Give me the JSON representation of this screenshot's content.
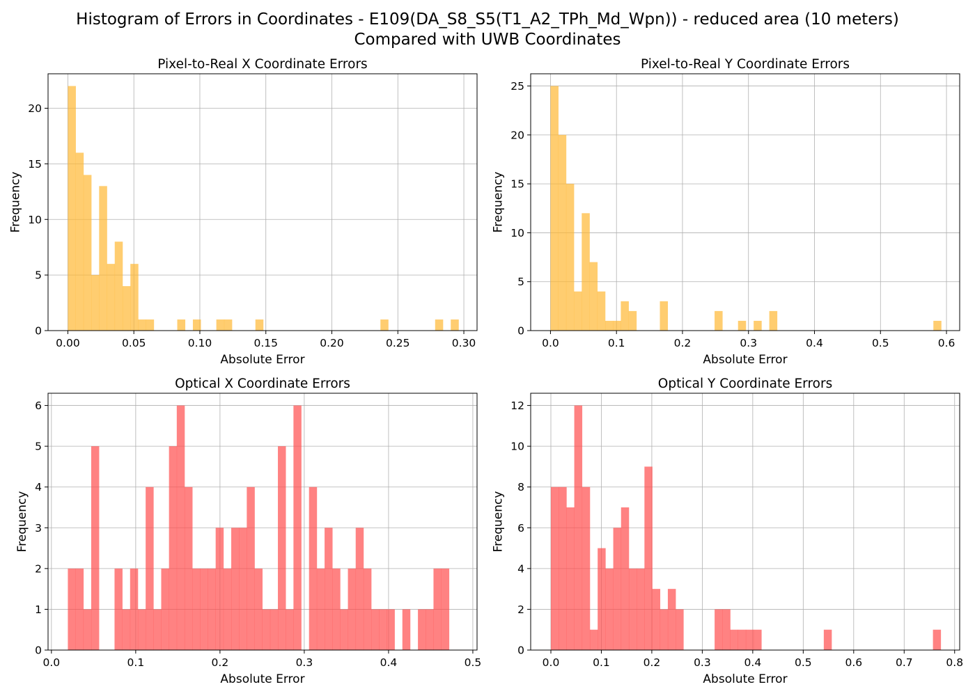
{
  "figure": {
    "title_line1": "Histogram of Errors in Coordinates - E109(DA_S8_S5(T1_A2_TPh_Md_Wpn)) - reduced area (10 meters)",
    "title_line2": "Compared with UWB Coordinates"
  },
  "chart_data": [
    {
      "type": "bar",
      "title": "Pixel-to-Real X Coordinate Errors",
      "xlabel": "Absolute Error",
      "ylabel": "Frequency",
      "color": "#ffb833",
      "grid": true,
      "xlim": [
        -0.015,
        0.31
      ],
      "ylim": [
        0,
        23.1
      ],
      "xticks": [
        0.0,
        0.05,
        0.1,
        0.15,
        0.2,
        0.25,
        0.3
      ],
      "xtick_labels": [
        "0.00",
        "0.05",
        "0.10",
        "0.15",
        "0.20",
        "0.25",
        "0.30"
      ],
      "yticks": [
        0,
        5,
        10,
        15,
        20
      ],
      "ytick_labels": [
        "0",
        "5",
        "10",
        "15",
        "20"
      ],
      "bin_start": 0.0,
      "bin_width": 0.00592,
      "values": [
        22,
        16,
        14,
        5,
        13,
        6,
        8,
        4,
        6,
        1,
        1,
        0,
        0,
        0,
        1,
        0,
        1,
        0,
        0,
        1,
        1,
        0,
        0,
        0,
        1,
        0,
        0,
        0,
        0,
        0,
        0,
        0,
        0,
        0,
        0,
        0,
        0,
        0,
        0,
        0,
        1,
        0,
        0,
        0,
        0,
        0,
        0,
        1,
        0,
        1
      ]
    },
    {
      "type": "bar",
      "title": "Pixel-to-Real Y Coordinate Errors",
      "xlabel": "Absolute Error",
      "ylabel": "Frequency",
      "color": "#ffb833",
      "grid": true,
      "xlim": [
        -0.03,
        0.62
      ],
      "ylim": [
        0,
        26.25
      ],
      "xticks": [
        0.0,
        0.1,
        0.2,
        0.3,
        0.4,
        0.5,
        0.6
      ],
      "xtick_labels": [
        "0.0",
        "0.1",
        "0.2",
        "0.3",
        "0.4",
        "0.5",
        "0.6"
      ],
      "yticks": [
        0,
        5,
        10,
        15,
        20,
        25
      ],
      "ytick_labels": [
        "0",
        "5",
        "10",
        "15",
        "20",
        "25"
      ],
      "bin_start": 0.0,
      "bin_width": 0.01184,
      "values": [
        25,
        20,
        15,
        4,
        12,
        7,
        4,
        1,
        1,
        3,
        2,
        0,
        0,
        0,
        3,
        0,
        0,
        0,
        0,
        0,
        0,
        2,
        0,
        0,
        1,
        0,
        1,
        0,
        2,
        0,
        0,
        0,
        0,
        0,
        0,
        0,
        0,
        0,
        0,
        0,
        0,
        0,
        0,
        0,
        0,
        0,
        0,
        0,
        0,
        1
      ]
    },
    {
      "type": "bar",
      "title": "Optical X Coordinate Errors",
      "xlabel": "Absolute Error",
      "ylabel": "Frequency",
      "color": "#ff4d4d",
      "grid": true,
      "xlim": [
        -0.004,
        0.505
      ],
      "ylim": [
        0,
        6.3
      ],
      "xticks": [
        0.0,
        0.1,
        0.2,
        0.3,
        0.4,
        0.5
      ],
      "xtick_labels": [
        "0.0",
        "0.1",
        "0.2",
        "0.3",
        "0.4",
        "0.5"
      ],
      "yticks": [
        0,
        1,
        2,
        3,
        4,
        5,
        6
      ],
      "ytick_labels": [
        "0",
        "1",
        "2",
        "3",
        "4",
        "5",
        "6"
      ],
      "bin_start": 0.0195,
      "bin_width": 0.00923,
      "values": [
        2,
        2,
        1,
        5,
        0,
        0,
        2,
        1,
        2,
        1,
        4,
        1,
        2,
        5,
        6,
        4,
        2,
        2,
        2,
        3,
        2,
        3,
        3,
        4,
        2,
        1,
        1,
        5,
        1,
        6,
        0,
        4,
        2,
        3,
        2,
        1,
        2,
        3,
        2,
        1,
        1,
        1,
        0,
        1,
        0,
        1,
        1,
        2,
        2,
        0,
        0,
        0,
        0,
        0,
        0,
        0,
        0,
        0,
        0,
        0,
        0,
        0,
        0,
        0,
        0,
        0,
        0,
        0,
        0,
        0,
        0,
        0,
        0,
        0,
        0,
        0,
        0,
        0,
        0,
        0,
        0,
        0,
        0,
        0,
        0,
        0,
        0,
        0,
        0,
        0,
        0,
        0,
        0,
        0,
        0,
        0,
        0,
        0,
        0,
        0
      ]
    },
    {
      "type": "bar",
      "title": "Optical Y Coordinate Errors",
      "xlabel": "Absolute Error",
      "ylabel": "Frequency",
      "color": "#ff4d4d",
      "grid": true,
      "xlim": [
        -0.04,
        0.81
      ],
      "ylim": [
        0,
        12.6
      ],
      "xticks": [
        0.0,
        0.1,
        0.2,
        0.3,
        0.4,
        0.5,
        0.6,
        0.7,
        0.8
      ],
      "xtick_labels": [
        "0.0",
        "0.1",
        "0.2",
        "0.3",
        "0.4",
        "0.5",
        "0.6",
        "0.7",
        "0.8"
      ],
      "yticks": [
        0,
        2,
        4,
        6,
        8,
        10,
        12
      ],
      "ytick_labels": [
        "0",
        "2",
        "4",
        "6",
        "8",
        "10",
        "12"
      ],
      "bin_start": 0.0,
      "bin_width": 0.01545,
      "values": [
        8,
        8,
        7,
        12,
        8,
        1,
        5,
        4,
        6,
        7,
        4,
        4,
        9,
        3,
        2,
        3,
        2,
        0,
        0,
        0,
        0,
        2,
        2,
        1,
        1,
        1,
        1,
        0,
        0,
        0,
        0,
        0,
        0,
        0,
        0,
        1,
        0,
        0,
        0,
        0,
        0,
        0,
        0,
        0,
        0,
        0,
        0,
        0,
        0,
        1
      ]
    }
  ]
}
